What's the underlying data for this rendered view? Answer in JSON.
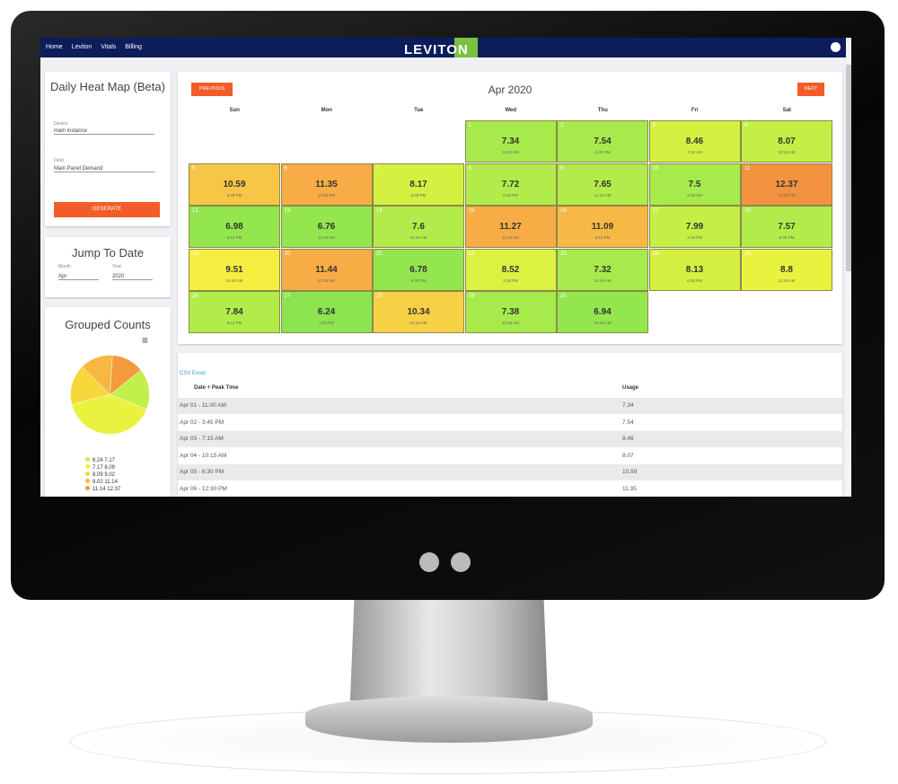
{
  "nav": {
    "items": [
      "Home",
      "Leviton",
      "Vitals",
      "Billing"
    ],
    "logo": "LEVITON"
  },
  "heatmap_panel": {
    "title": "Daily Heat Map (Beta)",
    "device_label": "Device",
    "device_value": "main instance",
    "field_label": "Field",
    "field_value": "Main Panel Demand",
    "button": "GENERATE"
  },
  "jump_panel": {
    "title": "Jump To Date",
    "month_label": "Month",
    "month_value": "Apr",
    "year_label": "Year",
    "year_value": "2020"
  },
  "grouped_counts": {
    "title": "Grouped Counts",
    "menu": "≡",
    "slices": [
      {
        "label": "6.24 7.17",
        "count": 5,
        "color": "#c2f04a"
      },
      {
        "label": "7.17 8.09",
        "count": 12,
        "color": "#e9f23e"
      },
      {
        "label": "8.09 9.02",
        "count": 5,
        "color": "#f7d83c"
      },
      {
        "label": "9.02 11.14",
        "count": 4,
        "color": "#f9b640"
      },
      {
        "label": "11.14 12.37",
        "count": 4,
        "color": "#f39a3c"
      }
    ]
  },
  "calendar": {
    "title": "Apr 2020",
    "previous": "PREVIOUS",
    "next": "NEXT",
    "weekdays": [
      "Sun",
      "Mon",
      "Tue",
      "Wed",
      "Thu",
      "Fri",
      "Sat"
    ],
    "days": [
      {
        "day": "1",
        "value": "7.34",
        "time": "11:00 AM",
        "color": "#a6ea4c"
      },
      {
        "day": "2",
        "value": "7.54",
        "time": "3:45 PM",
        "color": "#a6ea4c"
      },
      {
        "day": "3",
        "value": "8.46",
        "time": "7:15 AM",
        "color": "#d4f142"
      },
      {
        "day": "4",
        "value": "8.07",
        "time": "10:15 AM",
        "color": "#c4ef46"
      },
      {
        "day": "5",
        "value": "10.59",
        "time": "6:30 PM",
        "color": "#f8c646"
      },
      {
        "day": "6",
        "value": "11.35",
        "time": "12:30 PM",
        "color": "#f7ac45"
      },
      {
        "day": "7",
        "value": "8.17",
        "time": "6:00 PM",
        "color": "#d4f142"
      },
      {
        "day": "8",
        "value": "7.72",
        "time": "9:45 PM",
        "color": "#b2ec4a"
      },
      {
        "day": "9",
        "value": "7.65",
        "time": "11:15 AM",
        "color": "#b2ec4a"
      },
      {
        "day": "10",
        "value": "7.5",
        "time": "9:15 AM",
        "color": "#a6ea4c"
      },
      {
        "day": "11",
        "value": "12.37",
        "time": "11:00 PM",
        "color": "#f3923f"
      },
      {
        "day": "12",
        "value": "6.98",
        "time": "6:15 PM",
        "color": "#94e64e"
      },
      {
        "day": "13",
        "value": "6.76",
        "time": "11:15 AM",
        "color": "#94e64e"
      },
      {
        "day": "14",
        "value": "7.6",
        "time": "12:45 AM",
        "color": "#b2ec4a"
      },
      {
        "day": "15",
        "value": "11.27",
        "time": "11:15 AM",
        "color": "#f7ac45"
      },
      {
        "day": "16",
        "value": "11.09",
        "time": "9:15 PM",
        "color": "#f8b846"
      },
      {
        "day": "17",
        "value": "7.99",
        "time": "3:15 PM",
        "color": "#c4ef46"
      },
      {
        "day": "18",
        "value": "7.57",
        "time": "9:45 PM",
        "color": "#b2ec4a"
      },
      {
        "day": "19",
        "value": "9.51",
        "time": "10:45 AM",
        "color": "#f4ee40"
      },
      {
        "day": "20",
        "value": "11.44",
        "time": "12:15 AM",
        "color": "#f7ac45"
      },
      {
        "day": "21",
        "value": "6.78",
        "time": "6:30 PM",
        "color": "#94e64e"
      },
      {
        "day": "22",
        "value": "8.52",
        "time": "3:15 PM",
        "color": "#dcf242"
      },
      {
        "day": "23",
        "value": "7.32",
        "time": "10:45 AM",
        "color": "#a6ea4c"
      },
      {
        "day": "24",
        "value": "8.13",
        "time": "6:45 PM",
        "color": "#d4f142"
      },
      {
        "day": "25",
        "value": "8.8",
        "time": "11:45 AM",
        "color": "#e8f340"
      },
      {
        "day": "26",
        "value": "7.84",
        "time": "6:15 PM",
        "color": "#b2ec4a"
      },
      {
        "day": "27",
        "value": "6.24",
        "time": "1:00 PM",
        "color": "#8be450"
      },
      {
        "day": "28",
        "value": "10.34",
        "time": "12:15 AM",
        "color": "#f8d046"
      },
      {
        "day": "29",
        "value": "7.38",
        "time": "10:45 AM",
        "color": "#a6ea4c"
      },
      {
        "day": "30",
        "value": "6.94",
        "time": "10:45 AM",
        "color": "#94e64e"
      }
    ]
  },
  "table": {
    "links": [
      "CSV",
      "Excel"
    ],
    "headers": [
      "Date + Peak Time",
      "Usage"
    ],
    "rows": [
      [
        "Apr 01 - 11:00 AM",
        "7.34"
      ],
      [
        "Apr 02 - 3:45 PM",
        "7.54"
      ],
      [
        "Apr 03 - 7:15 AM",
        "8.46"
      ],
      [
        "Apr 04 - 10:15 AM",
        "8.07"
      ],
      [
        "Apr 05 - 6:30 PM",
        "10.59"
      ],
      [
        "Apr 06 - 12:30 PM",
        "11.35"
      ]
    ]
  }
}
